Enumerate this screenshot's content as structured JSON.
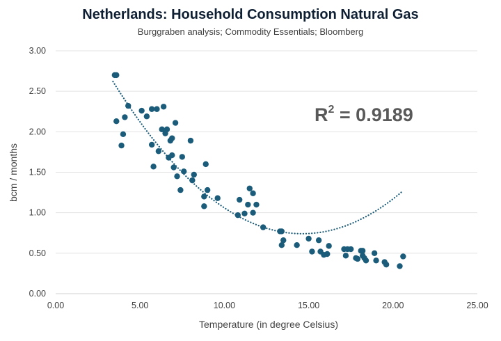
{
  "chart_data": {
    "type": "scatter",
    "title": "Netherlands: Household Consumption Natural Gas",
    "subtitle": "Burggraben analysis; Commodity Essentials; Bloomberg",
    "xlabel": "Temperature (in degree Celsius)",
    "ylabel": "bcm / months",
    "xlim": [
      0,
      25
    ],
    "ylim": [
      0,
      3
    ],
    "x_ticks": [
      0,
      5,
      10,
      15,
      20,
      25
    ],
    "x_tick_labels": [
      "0.00",
      "5.00",
      "10.00",
      "15.00",
      "20.00",
      "25.00"
    ],
    "y_ticks": [
      0,
      0.5,
      1,
      1.5,
      2,
      2.5,
      3
    ],
    "y_tick_labels": [
      "0.00",
      "0.50",
      "1.00",
      "1.50",
      "2.00",
      "2.50",
      "3.00"
    ],
    "annotation": {
      "base": "R",
      "sup": "2",
      "rest": " = 0.9189"
    },
    "point_color": "#1b5c7a",
    "trendline": {
      "type": "polynomial",
      "style": "dotted",
      "color": "#1b5c7a",
      "x_range": [
        3.4,
        20.6
      ],
      "coefficients": [
        3.93,
        -0.436,
        0.0149
      ]
    },
    "points": [
      {
        "x": 3.5,
        "y": 2.7
      },
      {
        "x": 3.6,
        "y": 2.7
      },
      {
        "x": 3.6,
        "y": 2.13
      },
      {
        "x": 3.9,
        "y": 1.83
      },
      {
        "x": 4.0,
        "y": 1.97
      },
      {
        "x": 4.1,
        "y": 2.18
      },
      {
        "x": 4.3,
        "y": 2.32
      },
      {
        "x": 5.1,
        "y": 2.26
      },
      {
        "x": 5.4,
        "y": 2.19
      },
      {
        "x": 5.7,
        "y": 2.28
      },
      {
        "x": 5.7,
        "y": 1.84
      },
      {
        "x": 5.8,
        "y": 1.57
      },
      {
        "x": 6.0,
        "y": 2.28
      },
      {
        "x": 6.1,
        "y": 1.76
      },
      {
        "x": 6.3,
        "y": 2.03
      },
      {
        "x": 6.4,
        "y": 2.31
      },
      {
        "x": 6.5,
        "y": 1.98
      },
      {
        "x": 6.6,
        "y": 2.03
      },
      {
        "x": 6.7,
        "y": 1.68
      },
      {
        "x": 6.8,
        "y": 1.89
      },
      {
        "x": 6.9,
        "y": 1.92
      },
      {
        "x": 6.9,
        "y": 1.71
      },
      {
        "x": 7.0,
        "y": 1.56
      },
      {
        "x": 7.1,
        "y": 2.11
      },
      {
        "x": 7.2,
        "y": 1.45
      },
      {
        "x": 7.4,
        "y": 1.28
      },
      {
        "x": 7.5,
        "y": 1.69
      },
      {
        "x": 7.6,
        "y": 1.51
      },
      {
        "x": 8.0,
        "y": 1.89
      },
      {
        "x": 8.1,
        "y": 1.4
      },
      {
        "x": 8.2,
        "y": 1.47
      },
      {
        "x": 8.8,
        "y": 1.2
      },
      {
        "x": 8.8,
        "y": 1.08
      },
      {
        "x": 8.9,
        "y": 1.6
      },
      {
        "x": 9.0,
        "y": 1.28
      },
      {
        "x": 9.6,
        "y": 1.18
      },
      {
        "x": 10.8,
        "y": 0.97
      },
      {
        "x": 10.9,
        "y": 1.16
      },
      {
        "x": 11.2,
        "y": 0.99
      },
      {
        "x": 11.4,
        "y": 1.1
      },
      {
        "x": 11.5,
        "y": 1.3
      },
      {
        "x": 11.7,
        "y": 1.24
      },
      {
        "x": 11.7,
        "y": 1.0
      },
      {
        "x": 11.9,
        "y": 1.1
      },
      {
        "x": 12.3,
        "y": 0.82
      },
      {
        "x": 13.3,
        "y": 0.77
      },
      {
        "x": 13.4,
        "y": 0.77
      },
      {
        "x": 13.4,
        "y": 0.6
      },
      {
        "x": 13.5,
        "y": 0.66
      },
      {
        "x": 14.3,
        "y": 0.6
      },
      {
        "x": 15.0,
        "y": 0.68
      },
      {
        "x": 15.2,
        "y": 0.52
      },
      {
        "x": 15.6,
        "y": 0.66
      },
      {
        "x": 15.7,
        "y": 0.52
      },
      {
        "x": 15.9,
        "y": 0.48
      },
      {
        "x": 16.1,
        "y": 0.49
      },
      {
        "x": 16.2,
        "y": 0.59
      },
      {
        "x": 17.1,
        "y": 0.55
      },
      {
        "x": 17.2,
        "y": 0.47
      },
      {
        "x": 17.3,
        "y": 0.55
      },
      {
        "x": 17.5,
        "y": 0.55
      },
      {
        "x": 17.8,
        "y": 0.44
      },
      {
        "x": 17.9,
        "y": 0.43
      },
      {
        "x": 18.1,
        "y": 0.53
      },
      {
        "x": 18.2,
        "y": 0.47
      },
      {
        "x": 18.2,
        "y": 0.53
      },
      {
        "x": 18.3,
        "y": 0.44
      },
      {
        "x": 18.4,
        "y": 0.41
      },
      {
        "x": 18.9,
        "y": 0.5
      },
      {
        "x": 19.0,
        "y": 0.41
      },
      {
        "x": 19.5,
        "y": 0.39
      },
      {
        "x": 19.6,
        "y": 0.36
      },
      {
        "x": 20.4,
        "y": 0.34
      },
      {
        "x": 20.6,
        "y": 0.46
      }
    ]
  }
}
